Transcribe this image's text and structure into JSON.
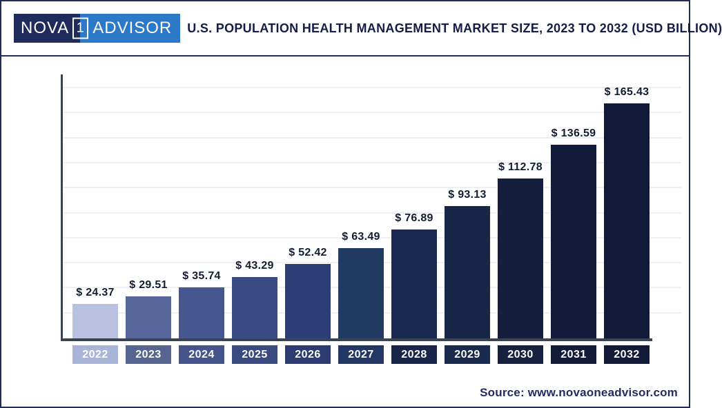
{
  "header": {
    "logo": {
      "part1": "NOVA",
      "part2": "1",
      "part3": "ADVISOR"
    },
    "title": "U.S. POPULATION HEALTH MANAGEMENT MARKET SIZE, 2023 TO 2032 (USD BILLION)"
  },
  "chart_data": {
    "type": "bar",
    "title": "U.S. Population Health Management Market Size, 2023 to 2032 (USD Billion)",
    "unit": "USD Billion",
    "categories": [
      "2022",
      "2023",
      "2024",
      "2025",
      "2026",
      "2027",
      "2028",
      "2029",
      "2030",
      "2031",
      "2032"
    ],
    "values": [
      24.37,
      29.51,
      35.74,
      43.29,
      52.42,
      63.49,
      76.89,
      93.13,
      112.78,
      136.59,
      165.43
    ],
    "value_labels": [
      "$ 24.37",
      "$ 29.51",
      "$ 35.74",
      "$ 43.29",
      "$ 52.42",
      "$ 63.49",
      "$ 76.89",
      "$ 93.13",
      "$ 112.78",
      "$ 136.59",
      "$ 165.43"
    ],
    "bar_colors": [
      "#b8c2e0",
      "#57669a",
      "#46568e",
      "#3a4b84",
      "#2d3d75",
      "#213a62",
      "#1a294f",
      "#182647",
      "#141f3e",
      "#121c3a",
      "#111b37"
    ],
    "label_box_colors": [
      "#a9b4d9",
      "#56658f",
      "#45548a",
      "#394a81",
      "#2c3c72",
      "#233765",
      "#18264c",
      "#1a2a4c",
      "#15213f",
      "#121c38",
      "#111b37"
    ],
    "ylim": [
      0,
      185
    ],
    "grid": true,
    "gridline_count": 10,
    "xlabel": "",
    "ylabel": ""
  },
  "source": {
    "label": "Source: www.novaoneadvisor.com"
  },
  "colors": {
    "frame_border": "#222b52",
    "axis": "#3c4350",
    "gridline": "#efeff4",
    "title_text": "#131d45",
    "value_text": "#131c31",
    "logo_left_bg": "#1e2b5b",
    "logo_right_bg": "#2b79c7",
    "source_text": "#232c63"
  }
}
